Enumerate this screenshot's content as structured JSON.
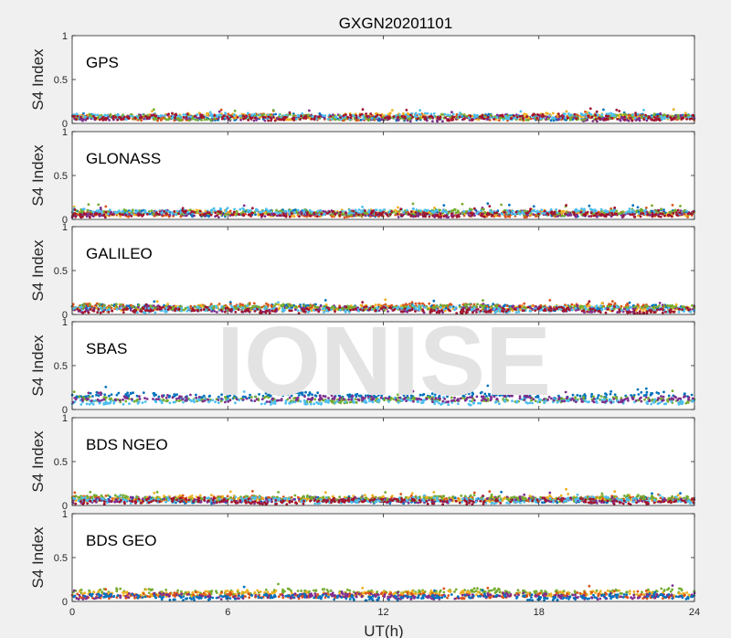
{
  "figure": {
    "title": "GXGN20201101",
    "xlabel": "UT(h)",
    "ylabel": "S4 Index",
    "watermark": "IONISE"
  },
  "chart_data": [
    {
      "type": "scatter",
      "panel_label": "GPS",
      "xlim": [
        0,
        24
      ],
      "ylim": [
        0,
        1
      ],
      "xticks": [
        0,
        6,
        12,
        18,
        24
      ],
      "yticks": [
        0,
        0.5,
        1
      ],
      "ytick_labels": [
        "0",
        "0.5",
        "1"
      ],
      "series": [
        {
          "color": "#0072BD",
          "base": 0.07
        },
        {
          "color": "#D95319",
          "base": 0.07
        },
        {
          "color": "#EDB120",
          "base": 0.08
        },
        {
          "color": "#7E2F8E",
          "base": 0.06
        },
        {
          "color": "#77AC30",
          "base": 0.07
        },
        {
          "color": "#4DBEEE",
          "base": 0.08
        },
        {
          "color": "#A2142F",
          "base": 0.07
        }
      ]
    },
    {
      "type": "scatter",
      "panel_label": "GLONASS",
      "xlim": [
        0,
        24
      ],
      "ylim": [
        0,
        1
      ],
      "xticks": [
        0,
        6,
        12,
        18,
        24
      ],
      "yticks": [
        0,
        0.5,
        1
      ],
      "ytick_labels": [
        "0",
        "0.5",
        "1"
      ],
      "series": [
        {
          "color": "#0072BD",
          "base": 0.07
        },
        {
          "color": "#D95319",
          "base": 0.06
        },
        {
          "color": "#EDB120",
          "base": 0.07
        },
        {
          "color": "#7E2F8E",
          "base": 0.06
        },
        {
          "color": "#77AC30",
          "base": 0.08
        },
        {
          "color": "#4DBEEE",
          "base": 0.09
        },
        {
          "color": "#A2142F",
          "base": 0.06
        }
      ]
    },
    {
      "type": "scatter",
      "panel_label": "GALILEO",
      "xlim": [
        0,
        24
      ],
      "ylim": [
        0,
        1
      ],
      "xticks": [
        0,
        6,
        12,
        18,
        24
      ],
      "yticks": [
        0,
        0.5,
        1
      ],
      "ytick_labels": [
        "0",
        "0.5",
        "1"
      ],
      "series": [
        {
          "color": "#0072BD",
          "base": 0.08
        },
        {
          "color": "#D95319",
          "base": 0.09
        },
        {
          "color": "#EDB120",
          "base": 0.07
        },
        {
          "color": "#7E2F8E",
          "base": 0.06
        },
        {
          "color": "#77AC30",
          "base": 0.08
        },
        {
          "color": "#4DBEEE",
          "base": 0.06
        },
        {
          "color": "#A2142F",
          "base": 0.05
        }
      ]
    },
    {
      "type": "scatter",
      "panel_label": "SBAS",
      "xlim": [
        0,
        24
      ],
      "ylim": [
        0,
        1
      ],
      "xticks": [
        0,
        6,
        12,
        18,
        24
      ],
      "yticks": [
        0,
        0.5,
        1
      ],
      "ytick_labels": [
        "0",
        "0.5",
        "1"
      ],
      "series": [
        {
          "color": "#0072BD",
          "base": 0.16
        },
        {
          "color": "#77AC30",
          "base": 0.11
        },
        {
          "color": "#4DBEEE",
          "base": 0.09
        },
        {
          "color": "#7E2F8E",
          "base": 0.12
        }
      ]
    },
    {
      "type": "scatter",
      "panel_label": "BDS NGEO",
      "xlim": [
        0,
        24
      ],
      "ylim": [
        0,
        1
      ],
      "xticks": [
        0,
        6,
        12,
        18,
        24
      ],
      "yticks": [
        0,
        0.5,
        1
      ],
      "ytick_labels": [
        "0",
        "0.5",
        "1"
      ],
      "series": [
        {
          "color": "#0072BD",
          "base": 0.06
        },
        {
          "color": "#D95319",
          "base": 0.07
        },
        {
          "color": "#EDB120",
          "base": 0.08
        },
        {
          "color": "#7E2F8E",
          "base": 0.06
        },
        {
          "color": "#77AC30",
          "base": 0.08
        },
        {
          "color": "#4DBEEE",
          "base": 0.06
        },
        {
          "color": "#A2142F",
          "base": 0.05
        }
      ]
    },
    {
      "type": "scatter",
      "panel_label": "BDS GEO",
      "xlim": [
        0,
        24
      ],
      "ylim": [
        0,
        1
      ],
      "xticks": [
        0,
        6,
        12,
        18,
        24
      ],
      "yticks": [
        0,
        0.5,
        1
      ],
      "ytick_labels": [
        "0",
        "0.5",
        "1"
      ],
      "series": [
        {
          "color": "#77AC30",
          "base": 0.11
        },
        {
          "color": "#EDB120",
          "base": 0.09
        },
        {
          "color": "#D95319",
          "base": 0.07
        },
        {
          "color": "#7E2F8E",
          "base": 0.06
        },
        {
          "color": "#0072BD",
          "base": 0.05
        }
      ]
    }
  ]
}
